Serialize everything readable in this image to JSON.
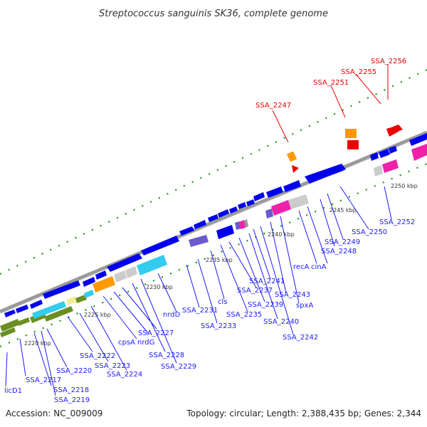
{
  "title": "Streptococcus sanguinis SK36, complete genome",
  "footer": {
    "accession": "Accession: NC_009009",
    "summary": "Topology: circular; Length: 2,388,435 bp; Genes: 2,344"
  },
  "colors": {
    "backbone": "#888888",
    "forward_cds": "#0000ee",
    "reverse_cds": "#0000ee",
    "label_blue": "#1a1aff",
    "label_red": "#ee0000",
    "tick_green": "#0a8a0a",
    "olive": "#6b8e23",
    "cyan": "#33ccee",
    "orange": "#ff9900",
    "magenta": "#ee22aa",
    "light_grey": "#cccccc",
    "purple": "#6a5acd",
    "red": "#ee0000"
  },
  "scale_labels": [
    "2220 kbp",
    "2225 kbp",
    "2230 kbp",
    "2235 kbp",
    "2240 kbp",
    "2245 kbp",
    "2250 kbp"
  ],
  "gene_labels_blue": [
    "licD1",
    "SSA_2217",
    "SSA_2218",
    "SSA_2219",
    "SSA_2220",
    "SSA_2222",
    "SSA_2223",
    "SSA_2224",
    "cpsA",
    "nrdG",
    "SSA_2227",
    "SSA_2228",
    "SSA_2229",
    "nrdD",
    "SSA_2231",
    "SSA_2233",
    "cls",
    "SSA_2235",
    "SSA_2237",
    "SSA_2239",
    "SSA_2240",
    "SSA_2241",
    "SSA_2242",
    "SSA_2243",
    "spxA",
    "recA",
    "cinA",
    "SSA_2248",
    "SSA_2249",
    "SSA_2250",
    "SSA_2252"
  ],
  "gene_labels_red": [
    "SSA_2247",
    "SSA_2251",
    "SSA_2255",
    "SSA_2256"
  ]
}
